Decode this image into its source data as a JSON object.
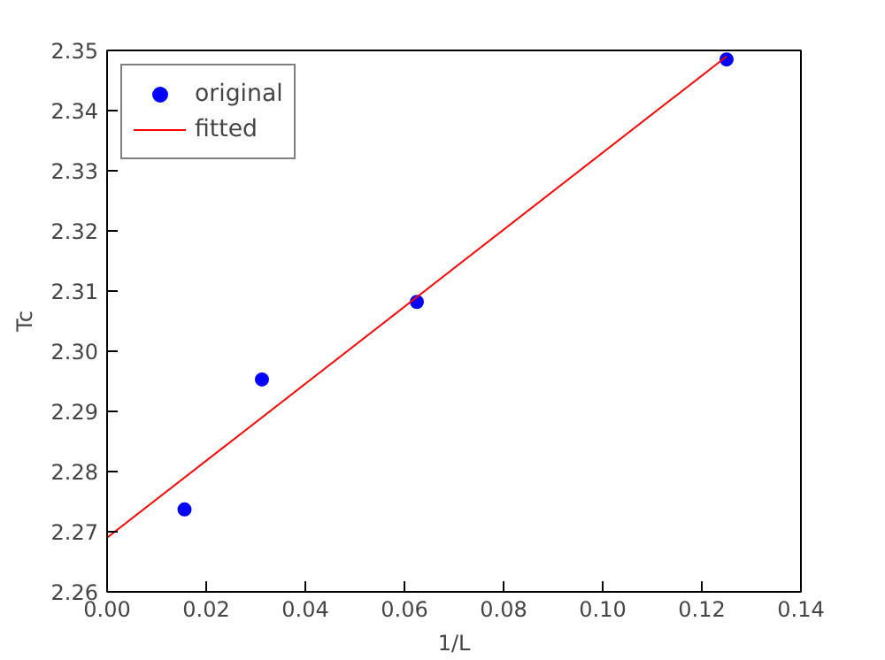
{
  "chart_data": {
    "type": "scatter",
    "xlabel": "1/L",
    "ylabel": "Tc",
    "xlim": [
      0,
      0.14
    ],
    "ylim": [
      2.26,
      2.35
    ],
    "xticks": [
      {
        "value": 0,
        "label": "0.00"
      },
      {
        "value": 0.02,
        "label": "0.02"
      },
      {
        "value": 0.04,
        "label": "0.04"
      },
      {
        "value": 0.06,
        "label": "0.06"
      },
      {
        "value": 0.08,
        "label": "0.08"
      },
      {
        "value": 0.1,
        "label": "0.10"
      },
      {
        "value": 0.12,
        "label": "0.12"
      },
      {
        "value": 0.14,
        "label": "0.14"
      }
    ],
    "yticks": [
      {
        "value": 2.26,
        "label": "2.26"
      },
      {
        "value": 2.27,
        "label": "2.27"
      },
      {
        "value": 2.28,
        "label": "2.28"
      },
      {
        "value": 2.29,
        "label": "2.29"
      },
      {
        "value": 2.3,
        "label": "2.30"
      },
      {
        "value": 2.31,
        "label": "2.31"
      },
      {
        "value": 2.32,
        "label": "2.32"
      },
      {
        "value": 2.33,
        "label": "2.33"
      },
      {
        "value": 2.34,
        "label": "2.34"
      },
      {
        "value": 2.35,
        "label": "2.35"
      }
    ],
    "grid": false,
    "legend": "top left",
    "series": [
      {
        "name": "original",
        "marker": "circle",
        "color": "#0000ff",
        "x": [
          0.015625,
          0.03125,
          0.0625,
          0.125
        ],
        "values": [
          2.2737,
          2.2953,
          2.3082,
          2.3485
        ]
      },
      {
        "name": "fitted",
        "type": "line",
        "color": "#ff0000",
        "x": [
          0,
          0.125
        ],
        "values": [
          2.269,
          2.349
        ]
      }
    ]
  }
}
